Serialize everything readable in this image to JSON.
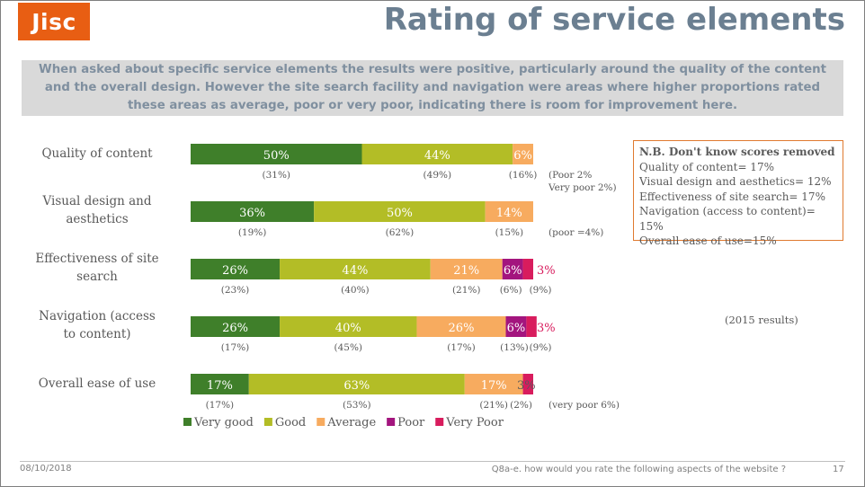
{
  "logo": "Jisc",
  "title": "Rating of service elements",
  "summary": "When asked about specific service elements the results were positive, particularly around the quality of the content and the overall design. However the site search facility and navigation were areas where higher proportions rated these areas as average, poor or very poor, indicating there is room for improvement here.",
  "note": {
    "heading": "N.B. Don't know scores removed",
    "lines": [
      "Quality of content= 17%",
      "Visual design and aesthetics= 12%",
      "Effectiveness of site search= 17%",
      "Navigation (access to content)= 15%",
      "Overall ease of use=15%"
    ]
  },
  "results_2015_label": "(2015 results)",
  "footer": {
    "date": "08/10/2018",
    "question": "Q8a-e. how would you rate the following aspects of the website ?",
    "page": "17"
  },
  "colors": {
    "Very good": "#3f7f2a",
    "Good": "#b3bd26",
    "Average": "#f7ab5f",
    "Poor": "#a3157e",
    "Very Poor": "#d81c5d"
  },
  "chart_data": {
    "type": "bar",
    "orientation": "horizontal",
    "stacked": true,
    "percent_stacked": true,
    "categories": [
      "Quality of content",
      "Visual design and aesthetics",
      "Effectiveness of site search",
      "Navigation (access to content)",
      "Overall ease of use"
    ],
    "series": [
      {
        "name": "Very good",
        "values": [
          50,
          36,
          26,
          26,
          17
        ],
        "labels_2015": [
          "(31%)",
          "(19%)",
          "(23%)",
          "(17%)",
          "(17%)"
        ]
      },
      {
        "name": "Good",
        "values": [
          44,
          50,
          44,
          40,
          63
        ],
        "labels_2015": [
          "(49%)",
          "(62%)",
          "(40%)",
          "(45%)",
          "(53%)"
        ]
      },
      {
        "name": "Average",
        "values": [
          6,
          14,
          21,
          26,
          17
        ],
        "labels_2015": [
          "(16%)",
          "(15%)",
          "(21%)",
          "(17%)",
          "(21%)"
        ]
      },
      {
        "name": "Poor",
        "values": [
          0,
          0,
          6,
          6,
          0
        ],
        "labels_2015": [
          "",
          "",
          "(6%)",
          "(13%)",
          ""
        ]
      },
      {
        "name": "Very Poor",
        "values": [
          0,
          0,
          3,
          3,
          3
        ],
        "labels_2015": [
          "",
          "",
          "(9%)",
          "(9%)",
          "(2%)"
        ]
      }
    ],
    "segment_labels": [
      [
        "50%",
        "44%",
        "6%",
        "",
        ""
      ],
      [
        "36%",
        "50%",
        "14%",
        "",
        ""
      ],
      [
        "26%",
        "44%",
        "21%",
        "6%",
        "3%"
      ],
      [
        "26%",
        "40%",
        "26%",
        "6%",
        "3%"
      ],
      [
        "17%",
        "63%",
        "17%",
        "",
        "3%"
      ]
    ],
    "row_notes": [
      "(Poor 2%\nVery poor 2%)",
      "(poor =4%)",
      "",
      "",
      "(very poor 6%)"
    ],
    "legend": [
      "Very good",
      "Good",
      "Average",
      "Poor",
      "Very Poor"
    ],
    "legend_position": "bottom",
    "grid": false
  }
}
